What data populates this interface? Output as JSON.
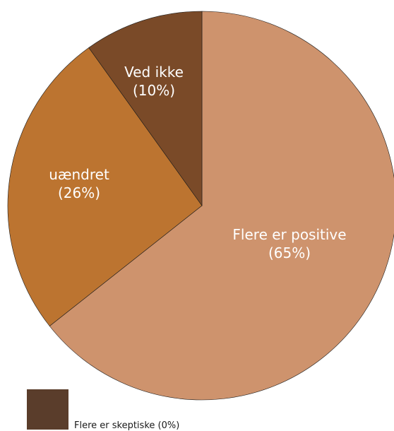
{
  "chart_data": {
    "type": "pie",
    "title": "",
    "slices": [
      {
        "category": "Flere er positive",
        "label_value": "(65%)",
        "value": 65,
        "color": "#ce936d"
      },
      {
        "category": "uændret",
        "label_value": "(26%)",
        "value": 26,
        "color": "#bc7430"
      },
      {
        "category": "Ved ikke",
        "label_value": "(10%)",
        "value": 10,
        "color": "#7a4a28"
      },
      {
        "category": "Flere er skeptiske",
        "label_value": "(0%)",
        "value": 0,
        "color": "#5a3d2b"
      }
    ],
    "legend": {
      "placement": "bottom-left",
      "entries": [
        {
          "label": "Flere er skeptiske (0%)",
          "color": "#5a3d2b"
        }
      ]
    }
  }
}
